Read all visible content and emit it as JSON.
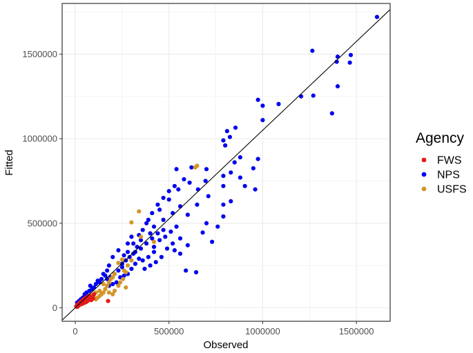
{
  "chart_data": {
    "type": "scatter",
    "xlabel": "Observed",
    "ylabel": "Fitted",
    "xlim": [
      -70000,
      1680000
    ],
    "ylim": [
      -80000,
      1800000
    ],
    "x_ticks": [
      0,
      500000,
      1000000,
      1500000
    ],
    "y_ticks": [
      0,
      500000,
      1000000,
      1500000
    ],
    "x_tick_labels": [
      "0",
      "500000",
      "1000000",
      "1500000"
    ],
    "y_tick_labels": [
      "0",
      "500000",
      "1000000",
      "1500000"
    ],
    "grid": true,
    "reference_line": {
      "slope": 1.05,
      "intercept": 0
    },
    "legend": {
      "title": "Agency",
      "placement": "right",
      "entries": [
        {
          "label": "FWS",
          "color": "#e31a1c"
        },
        {
          "label": "NPS",
          "color": "#0000ee"
        },
        {
          "label": "USFS",
          "color": "#d4952a"
        }
      ]
    },
    "series": [
      {
        "name": "NPS",
        "color": "#0000ee",
        "points": [
          [
            1610000,
            1720000
          ],
          [
            1470000,
            1495000
          ],
          [
            1465000,
            1450000
          ],
          [
            1400000,
            1485000
          ],
          [
            1395000,
            1455000
          ],
          [
            1265000,
            1520000
          ],
          [
            1270000,
            1255000
          ],
          [
            1205000,
            1250000
          ],
          [
            1400000,
            1310000
          ],
          [
            1370000,
            1150000
          ],
          [
            1085000,
            1205000
          ],
          [
            1000000,
            1195000
          ],
          [
            975000,
            1230000
          ],
          [
            1000000,
            1110000
          ],
          [
            855000,
            1065000
          ],
          [
            810000,
            1045000
          ],
          [
            825000,
            1010000
          ],
          [
            790000,
            990000
          ],
          [
            800000,
            960000
          ],
          [
            880000,
            890000
          ],
          [
            850000,
            860000
          ],
          [
            975000,
            880000
          ],
          [
            950000,
            825000
          ],
          [
            830000,
            800000
          ],
          [
            880000,
            770000
          ],
          [
            790000,
            780000
          ],
          [
            790000,
            720000
          ],
          [
            905000,
            720000
          ],
          [
            960000,
            700000
          ],
          [
            830000,
            630000
          ],
          [
            790000,
            610000
          ],
          [
            790000,
            540000
          ],
          [
            710000,
            660000
          ],
          [
            655000,
            700000
          ],
          [
            695000,
            750000
          ],
          [
            760000,
            480000
          ],
          [
            730000,
            390000
          ],
          [
            680000,
            445000
          ],
          [
            700000,
            500000
          ],
          [
            590000,
            220000
          ],
          [
            645000,
            210000
          ],
          [
            560000,
            320000
          ],
          [
            600000,
            370000
          ],
          [
            530000,
            340000
          ],
          [
            700000,
            820000
          ],
          [
            620000,
            830000
          ],
          [
            540000,
            820000
          ],
          [
            580000,
            760000
          ],
          [
            610000,
            740000
          ],
          [
            650000,
            610000
          ],
          [
            560000,
            600000
          ],
          [
            520000,
            560000
          ],
          [
            600000,
            550000
          ],
          [
            470000,
            520000
          ],
          [
            450000,
            580000
          ],
          [
            500000,
            640000
          ],
          [
            420000,
            480000
          ],
          [
            400000,
            440000
          ],
          [
            380000,
            500000
          ],
          [
            350000,
            400000
          ],
          [
            330000,
            360000
          ],
          [
            300000,
            420000
          ],
          [
            310000,
            320000
          ],
          [
            280000,
            380000
          ],
          [
            260000,
            310000
          ],
          [
            250000,
            260000
          ],
          [
            230000,
            340000
          ],
          [
            200000,
            300000
          ],
          [
            180000,
            250000
          ],
          [
            170000,
            220000
          ],
          [
            160000,
            190000
          ],
          [
            150000,
            200000
          ],
          [
            140000,
            170000
          ],
          [
            130000,
            150000
          ],
          [
            120000,
            160000
          ],
          [
            110000,
            140000
          ],
          [
            100000,
            120000
          ],
          [
            90000,
            110000
          ],
          [
            80000,
            130000
          ],
          [
            75000,
            100000
          ],
          [
            60000,
            90000
          ],
          [
            50000,
            80000
          ],
          [
            40000,
            60000
          ],
          [
            30000,
            50000
          ],
          [
            20000,
            40000
          ],
          [
            15000,
            20000
          ],
          [
            10000,
            30000
          ],
          [
            420000,
            330000
          ],
          [
            450000,
            400000
          ],
          [
            480000,
            420000
          ],
          [
            510000,
            450000
          ],
          [
            540000,
            480000
          ],
          [
            560000,
            410000
          ],
          [
            520000,
            380000
          ],
          [
            490000,
            350000
          ],
          [
            460000,
            300000
          ],
          [
            430000,
            270000
          ],
          [
            400000,
            250000
          ],
          [
            370000,
            230000
          ],
          [
            340000,
            290000
          ],
          [
            320000,
            260000
          ],
          [
            300000,
            230000
          ],
          [
            280000,
            200000
          ],
          [
            260000,
            190000
          ],
          [
            240000,
            180000
          ],
          [
            220000,
            150000
          ],
          [
            200000,
            140000
          ],
          [
            180000,
            130000
          ],
          [
            360000,
            460000
          ],
          [
            390000,
            520000
          ],
          [
            410000,
            560000
          ],
          [
            440000,
            610000
          ],
          [
            470000,
            650000
          ],
          [
            500000,
            690000
          ],
          [
            530000,
            720000
          ],
          [
            550000,
            700000
          ],
          [
            470000,
            460000
          ],
          [
            440000,
            440000
          ],
          [
            410000,
            410000
          ],
          [
            380000,
            380000
          ],
          [
            350000,
            350000
          ],
          [
            320000,
            330000
          ],
          [
            290000,
            300000
          ],
          [
            270000,
            280000
          ],
          [
            250000,
            240000
          ],
          [
            230000,
            220000
          ],
          [
            210000,
            200000
          ],
          [
            190000,
            180000
          ],
          [
            170000,
            170000
          ],
          [
            360000,
            280000
          ],
          [
            390000,
            300000
          ],
          [
            420000,
            360000
          ],
          [
            340000,
            430000
          ],
          [
            310000,
            380000
          ],
          [
            280000,
            330000
          ]
        ]
      },
      {
        "name": "USFS",
        "color": "#d4952a",
        "points": [
          [
            650000,
            840000
          ],
          [
            640000,
            830000
          ],
          [
            340000,
            570000
          ],
          [
            300000,
            505000
          ],
          [
            350000,
            420000
          ],
          [
            420000,
            390000
          ],
          [
            300000,
            280000
          ],
          [
            280000,
            250000
          ],
          [
            250000,
            285000
          ],
          [
            230000,
            265000
          ],
          [
            260000,
            220000
          ],
          [
            210000,
            200000
          ],
          [
            200000,
            180000
          ],
          [
            190000,
            170000
          ],
          [
            180000,
            150000
          ],
          [
            170000,
            130000
          ],
          [
            160000,
            110000
          ],
          [
            150000,
            90000
          ],
          [
            140000,
            80000
          ],
          [
            130000,
            70000
          ],
          [
            120000,
            60000
          ],
          [
            110000,
            50000
          ],
          [
            100000,
            60000
          ],
          [
            90000,
            70000
          ],
          [
            80000,
            75000
          ],
          [
            70000,
            60000
          ],
          [
            60000,
            55000
          ],
          [
            50000,
            45000
          ],
          [
            40000,
            40000
          ],
          [
            230000,
            130000
          ],
          [
            210000,
            100000
          ],
          [
            240000,
            150000
          ],
          [
            270000,
            210000
          ],
          [
            255000,
            170000
          ],
          [
            270000,
            120000
          ],
          [
            200000,
            80000
          ],
          [
            180000,
            90000
          ],
          [
            130000,
            100000
          ],
          [
            110000,
            90000
          ],
          [
            150000,
            140000
          ]
        ]
      },
      {
        "name": "FWS",
        "color": "#e31a1c",
        "points": [
          [
            175000,
            40000
          ],
          [
            100000,
            80000
          ],
          [
            90000,
            65000
          ],
          [
            80000,
            60000
          ],
          [
            70000,
            50000
          ],
          [
            65000,
            40000
          ],
          [
            60000,
            35000
          ],
          [
            55000,
            45000
          ],
          [
            50000,
            30000
          ],
          [
            45000,
            40000
          ],
          [
            40000,
            25000
          ],
          [
            35000,
            30000
          ],
          [
            30000,
            20000
          ],
          [
            25000,
            25000
          ],
          [
            20000,
            15000
          ],
          [
            15000,
            10000
          ],
          [
            10000,
            5000
          ],
          [
            5000,
            8000
          ],
          [
            8000,
            12000
          ],
          [
            12000,
            18000
          ],
          [
            18000,
            22000
          ],
          [
            22000,
            28000
          ],
          [
            28000,
            32000
          ],
          [
            32000,
            38000
          ],
          [
            38000,
            42000
          ],
          [
            42000,
            48000
          ],
          [
            48000,
            52000
          ],
          [
            52000,
            55000
          ],
          [
            58000,
            58000
          ],
          [
            62000,
            62000
          ],
          [
            68000,
            65000
          ],
          [
            72000,
            70000
          ],
          [
            78000,
            50000
          ],
          [
            85000,
            45000
          ],
          [
            95000,
            55000
          ]
        ]
      }
    ]
  }
}
